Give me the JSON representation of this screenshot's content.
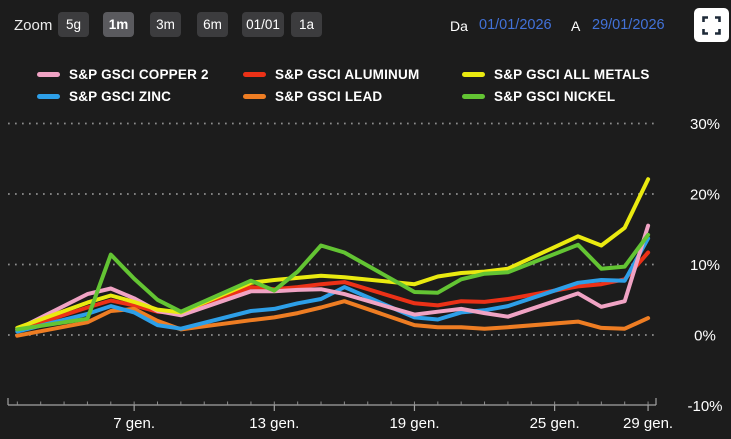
{
  "toolbar": {
    "zoom_label": "Zoom",
    "zoom_buttons": [
      {
        "label": "5g",
        "active": false
      },
      {
        "label": "1m",
        "active": true
      },
      {
        "label": "3m",
        "active": false
      },
      {
        "label": "6m",
        "active": false
      },
      {
        "label": "01/01",
        "active": false
      },
      {
        "label": "1a",
        "active": false
      }
    ],
    "range": {
      "from_label": "Da",
      "from_value": "01/01/2026",
      "to_label": "A",
      "to_value": "29/01/2026"
    },
    "fullscreen_icon": "fullscreen-brackets-icon"
  },
  "legend": {
    "items": [
      {
        "label": "S&P GSCI COPPER 2",
        "color": "#F0A3C4",
        "series_key": "copper2"
      },
      {
        "label": "S&P GSCI ALUMINUM",
        "color": "#EC3117",
        "series_key": "aluminum"
      },
      {
        "label": "S&P GSCI ALL METALS",
        "color": "#EAEA10",
        "series_key": "allmetals"
      },
      {
        "label": "S&P GSCI ZINC",
        "color": "#2D9FE8",
        "series_key": "zinc"
      },
      {
        "label": "S&P GSCI LEAD",
        "color": "#EE7D23",
        "series_key": "lead"
      },
      {
        "label": "S&P GSCI NICKEL",
        "color": "#63C433",
        "series_key": "nickel"
      }
    ]
  },
  "chart_data": {
    "type": "line",
    "title": "",
    "xlabel": "",
    "ylabel": "",
    "x_unit": "day of January 2026 (gen.)",
    "grid": "dotted-horizontal",
    "legend_position": "top",
    "ylim": [
      -10,
      30
    ],
    "ytick_values": [
      30,
      20,
      10,
      0,
      -10
    ],
    "ytick_labels": [
      "30%",
      "20%",
      "10%",
      "0%",
      "-10%"
    ],
    "xticks": [
      {
        "day": 7,
        "label": "7 gen."
      },
      {
        "day": 13,
        "label": "13 gen."
      },
      {
        "day": 19,
        "label": "19 gen."
      },
      {
        "day": 25,
        "label": "25 gen."
      },
      {
        "day": 29,
        "label": "29 gen."
      }
    ],
    "days": [
      2,
      5,
      6,
      7,
      8,
      9,
      12,
      13,
      14,
      15,
      16,
      19,
      20,
      21,
      22,
      23,
      26,
      27,
      28,
      29
    ],
    "unit": "percent change",
    "series": [
      {
        "name": "S&P GSCI ALUMINUM",
        "color": "#EC3117",
        "values": [
          0.7,
          3.9,
          4.9,
          4.2,
          3.3,
          3.1,
          6.8,
          6.5,
          6.8,
          7.2,
          7.5,
          4.5,
          4.2,
          4.8,
          4.7,
          5.1,
          6.9,
          7.2,
          7.9,
          11.7
        ]
      },
      {
        "name": "S&P GSCI LEAD",
        "color": "#EE7D23",
        "values": [
          -0.1,
          1.8,
          3.4,
          3.7,
          2.0,
          0.8,
          2.1,
          2.5,
          3.1,
          3.9,
          4.8,
          1.4,
          1.1,
          1.1,
          0.9,
          1.1,
          1.9,
          1.0,
          0.9,
          2.4
        ]
      },
      {
        "name": "S&P GSCI ZINC",
        "color": "#2D9FE8",
        "values": [
          0.5,
          3.0,
          4.1,
          3.2,
          1.4,
          0.9,
          3.4,
          3.7,
          4.5,
          5.1,
          6.8,
          2.5,
          2.2,
          3.2,
          3.5,
          4.1,
          7.4,
          7.8,
          7.7,
          13.7
        ]
      },
      {
        "name": "S&P GSCI COPPER 2",
        "color": "#F0A3C4",
        "values": [
          0.8,
          5.8,
          6.6,
          5.2,
          3.4,
          2.8,
          6.2,
          6.2,
          6.4,
          6.5,
          5.8,
          2.9,
          3.3,
          3.7,
          3.1,
          2.6,
          5.9,
          4.0,
          4.8,
          15.5
        ]
      },
      {
        "name": "S&P GSCI ALL METALS",
        "color": "#EAEA10",
        "values": [
          1.0,
          4.6,
          5.6,
          4.7,
          3.6,
          3.2,
          7.4,
          7.8,
          8.1,
          8.4,
          8.2,
          7.2,
          8.3,
          8.8,
          9.0,
          9.4,
          14.0,
          12.7,
          15.2,
          22.1
        ]
      },
      {
        "name": "S&P GSCI NICKEL",
        "color": "#63C433",
        "values": [
          0.8,
          2.3,
          11.4,
          8.0,
          5.0,
          3.3,
          7.7,
          6.3,
          9.0,
          12.7,
          11.7,
          6.1,
          6.0,
          7.9,
          8.7,
          8.9,
          12.8,
          9.4,
          9.7,
          14.2
        ]
      }
    ]
  }
}
